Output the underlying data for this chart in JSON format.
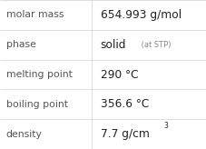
{
  "rows": [
    {
      "label": "molar mass",
      "value": "654.993 g/mol",
      "value_parts": null,
      "small_suffix": null,
      "superscript": null
    },
    {
      "label": "phase",
      "value": null,
      "value_parts": [
        "solid",
        " (at STP)"
      ],
      "small_suffix": null,
      "superscript": null
    },
    {
      "label": "melting point",
      "value": "290 °C",
      "value_parts": null,
      "small_suffix": null,
      "superscript": null
    },
    {
      "label": "boiling point",
      "value": "356.6 °C",
      "value_parts": null,
      "small_suffix": null,
      "superscript": null
    },
    {
      "label": "density",
      "value": null,
      "value_parts": [
        "7.7 g/cm",
        "3"
      ],
      "small_suffix": null,
      "superscript": "3"
    }
  ],
  "bg_color": "#ffffff",
  "border_color": "#d0d0d0",
  "label_color": "#555555",
  "value_color": "#222222",
  "small_color": "#888888",
  "label_fontsize": 7.8,
  "value_fontsize": 8.8,
  "small_fontsize": 6.0,
  "sup_fontsize": 5.5,
  "col_split": 0.445
}
